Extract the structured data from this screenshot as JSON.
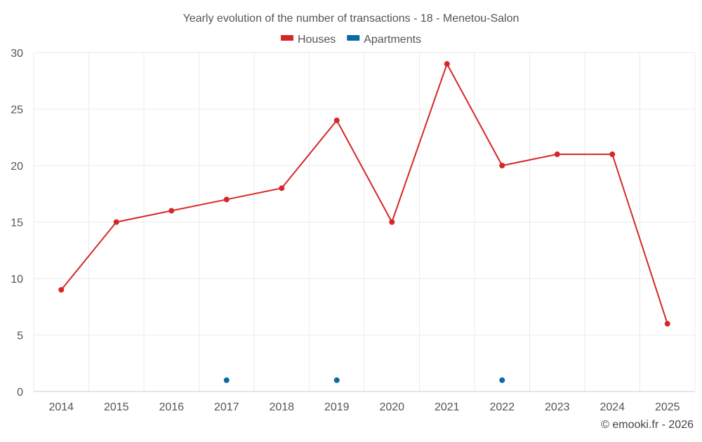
{
  "chart_data": {
    "type": "line",
    "title": "Yearly evolution of the number of transactions - 18 - Menetou-Salon",
    "xlabel": "",
    "ylabel": "",
    "categories": [
      "2014",
      "2015",
      "2016",
      "2017",
      "2018",
      "2019",
      "2020",
      "2021",
      "2022",
      "2023",
      "2024",
      "2025"
    ],
    "ylim": [
      0,
      30
    ],
    "yticks": [
      0,
      5,
      10,
      15,
      20,
      25,
      30
    ],
    "grid": true,
    "legend_position": "top-center",
    "series": [
      {
        "name": "Houses",
        "color": "#d62728",
        "values": [
          9,
          15,
          16,
          17,
          18,
          24,
          15,
          29,
          20,
          21,
          21,
          6
        ]
      },
      {
        "name": "Apartments",
        "color": "#0a6aa1",
        "values": [
          null,
          null,
          null,
          1,
          null,
          1,
          null,
          null,
          1,
          null,
          null,
          null
        ]
      }
    ]
  },
  "credit": "© emooki.fr - 2026"
}
